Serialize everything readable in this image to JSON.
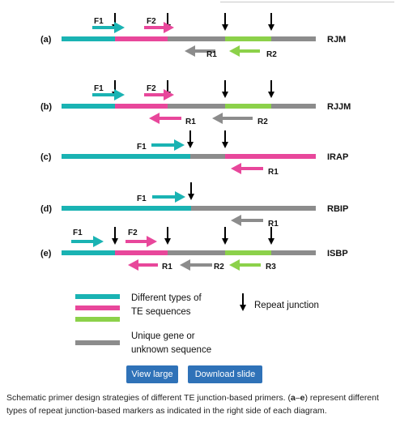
{
  "colors": {
    "teal": "#1ab3b3",
    "magenta": "#e8479b",
    "green": "#8cd14a",
    "gray": "#8c8c8c",
    "black": "#000000",
    "button_blue": "#2f72b8"
  },
  "rows": [
    {
      "letter": "(a)",
      "name": "RJM",
      "forward": [
        "F1",
        "F2"
      ],
      "reverse": [
        "R1",
        "R2"
      ]
    },
    {
      "letter": "(b)",
      "name": "RJJM",
      "forward": [
        "F1",
        "F2"
      ],
      "reverse": [
        "R1",
        "R2"
      ]
    },
    {
      "letter": "(c)",
      "name": "IRAP",
      "forward": [
        "F1"
      ],
      "reverse": [
        "R1"
      ]
    },
    {
      "letter": "(d)",
      "name": "RBIP",
      "forward": [
        "F1"
      ],
      "reverse": [
        "R1"
      ]
    },
    {
      "letter": "(e)",
      "name": "ISBP",
      "forward": [
        "F1",
        "F2"
      ],
      "reverse": [
        "R1",
        "R2",
        "R3"
      ]
    }
  ],
  "legend": {
    "te_text": [
      "Different types of",
      "TE sequences"
    ],
    "unique_text": [
      "Unique gene or",
      "unknown sequence"
    ],
    "junction_text": "Repeat junction"
  },
  "buttons": {
    "view_large": "View large",
    "download_slide": "Download slide"
  },
  "caption": {
    "part1": "Schematic primer design strategies of different TE junction-based primers. (",
    "bold1": "a",
    "part2": "–",
    "bold2": "e",
    "part3": ") represent different types of repeat junction-based markers as indicated in the right side of each diagram."
  }
}
